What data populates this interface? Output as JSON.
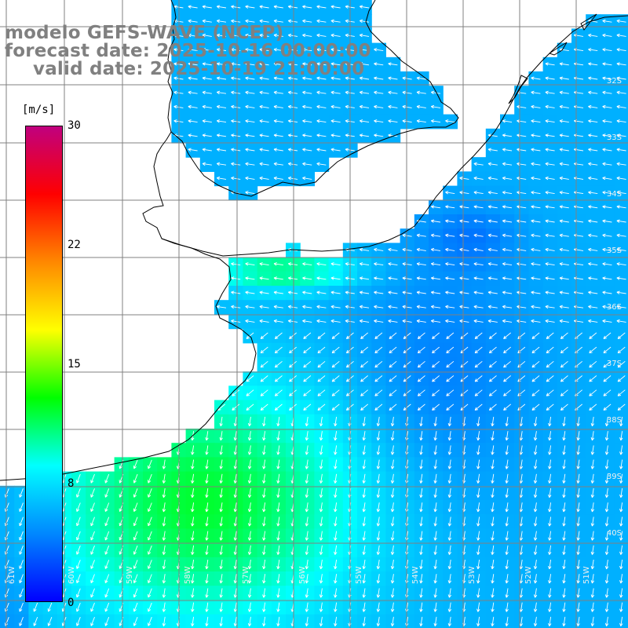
{
  "title": {
    "line1": "modelo GEFS-WAVE (NCEP)",
    "line2": "forecast date: 2025-10-16 00:00:00",
    "line3": "valid date: 2025-10-19 21:00:00"
  },
  "colorbar": {
    "unit": "[m/s]",
    "ticks": [
      "30",
      "22",
      "15",
      "8",
      "0"
    ],
    "tick_values": [
      30,
      22,
      15,
      8,
      0
    ],
    "min": 0,
    "max": 30,
    "gradient_colors": [
      "#0000ff",
      "#0088ff",
      "#00ffff",
      "#00ff00",
      "#ffff00",
      "#ff8800",
      "#ff0000",
      "#c0007f"
    ]
  },
  "axes": {
    "lat_labels": [
      "32S",
      "33S",
      "34S",
      "35S",
      "36S",
      "37S",
      "38S",
      "39S",
      "40S"
    ],
    "lon_labels": [
      "61W",
      "60W",
      "59W",
      "58W",
      "57W",
      "56W",
      "55W",
      "54W",
      "53W",
      "52W",
      "51W"
    ]
  },
  "colors": {
    "land": "#ffffff",
    "grid": "#808080",
    "coast": "#000000",
    "arrow": "#ffffff",
    "title": "#808080"
  }
}
